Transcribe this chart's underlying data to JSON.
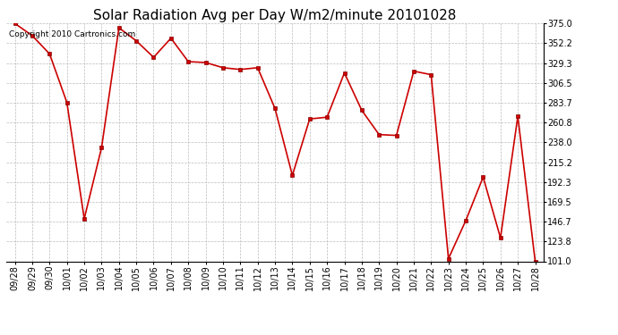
{
  "title": "Solar Radiation Avg per Day W/m2/minute 20101028",
  "copyright_text": "Copyright 2010 Cartronics.com",
  "labels": [
    "09/28",
    "09/29",
    "09/30",
    "10/01",
    "10/02",
    "10/03",
    "10/04",
    "10/05",
    "10/06",
    "10/07",
    "10/08",
    "10/09",
    "10/10",
    "10/11",
    "10/12",
    "10/13",
    "10/14",
    "10/15",
    "10/16",
    "10/17",
    "10/18",
    "10/19",
    "10/20",
    "10/21",
    "10/22",
    "10/23",
    "10/24",
    "10/25",
    "10/26",
    "10/27",
    "10/28"
  ],
  "values": [
    375.0,
    361.0,
    340.0,
    284.0,
    150.0,
    232.0,
    370.0,
    355.0,
    336.0,
    358.0,
    331.0,
    330.0,
    324.0,
    322.0,
    324.0,
    277.0,
    200.0,
    265.0,
    267.0,
    318.0,
    275.0,
    247.0,
    246.0,
    320.0,
    316.0,
    104.0,
    148.0,
    198.0,
    128.0,
    268.0,
    101.0
  ],
  "ylim_min": 101.0,
  "ylim_max": 375.0,
  "yticks": [
    101.0,
    123.8,
    146.7,
    169.5,
    192.3,
    215.2,
    238.0,
    260.8,
    283.7,
    306.5,
    329.3,
    352.2,
    375.0
  ],
  "line_color": "#cc0000",
  "marker": "s",
  "marker_color": "#cc0000",
  "marker_size": 2.5,
  "bg_color": "#ffffff",
  "grid_color": "#bbbbbb",
  "title_fontsize": 11,
  "tick_fontsize": 7,
  "copyright_fontsize": 6.5
}
